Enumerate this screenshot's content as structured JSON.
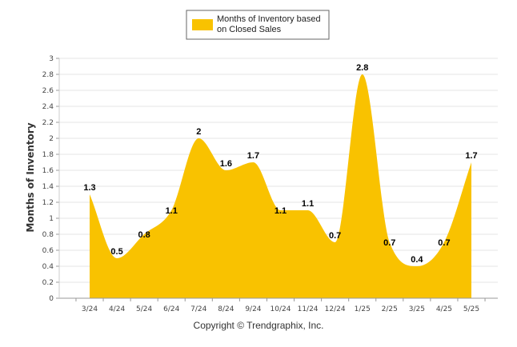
{
  "chart_data": {
    "type": "area",
    "categories": [
      "3/24",
      "4/24",
      "5/24",
      "6/24",
      "7/24",
      "8/24",
      "9/24",
      "10/24",
      "11/24",
      "12/24",
      "1/25",
      "2/25",
      "3/25",
      "4/25",
      "5/25"
    ],
    "series": [
      {
        "name": "Months of Inventory based on Closed Sales",
        "values": [
          1.3,
          0.5,
          0.8,
          1.1,
          2,
          1.6,
          1.7,
          1.1,
          1.1,
          0.7,
          2.8,
          0.7,
          0.4,
          0.7,
          1.7
        ]
      }
    ],
    "data_labels": [
      "1.3",
      "0.5",
      "0.8",
      "1.1",
      "2",
      "1.6",
      "1.7",
      "1.1",
      "1.1",
      "0.7",
      "2.8",
      "0.7",
      "0.4",
      "0.7",
      "1.7"
    ],
    "yticks": [
      "0",
      "0.2",
      "0.4",
      "0.6",
      "0.8",
      "1",
      "1.2",
      "1.4",
      "1.6",
      "1.8",
      "2",
      "2.2",
      "2.4",
      "2.6",
      "2.8",
      "3"
    ],
    "ylabel": "Months of Inventory",
    "xlabel": "",
    "ylim": [
      0,
      3
    ],
    "grid": true,
    "legend": {
      "position": "top-center",
      "line1": "Months of Inventory based",
      "line2": "on Closed Sales"
    },
    "colors": {
      "fill": "#F9C200",
      "grid": "#e6e6e6",
      "axis": "#999999"
    }
  },
  "footer": {
    "text": "Copyright © Trendgraphix, Inc."
  }
}
